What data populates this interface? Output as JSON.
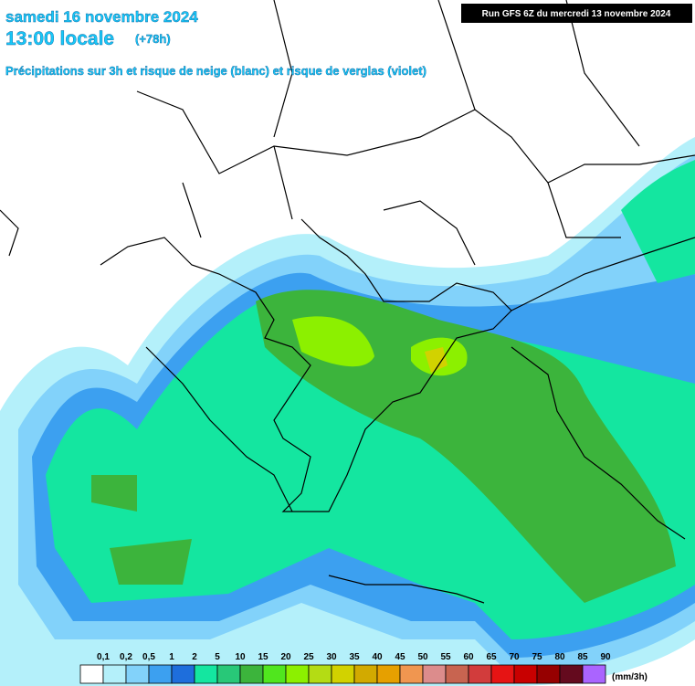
{
  "header": {
    "date": "samedi 16 novembre 2024",
    "time": "13:00 locale",
    "lead": "(+78h)",
    "subtitle": "Précipitations sur 3h et risque de neige (blanc) et risque de verglas (violet)",
    "run": "Run GFS 6Z du mercredi 13 novembre 2024"
  },
  "legend": {
    "labels": [
      "0,1",
      "0,2",
      "0,5",
      "1",
      "2",
      "5",
      "10",
      "15",
      "20",
      "25",
      "30",
      "35",
      "40",
      "45",
      "50",
      "55",
      "60",
      "65",
      "70",
      "75",
      "80",
      "85",
      "90"
    ],
    "colors": [
      "#ffffff",
      "#b4f0fa",
      "#82d2fa",
      "#3ca0f0",
      "#1e6edc",
      "#14e6a0",
      "#28c878",
      "#3cb43c",
      "#50e61e",
      "#8cf000",
      "#b4dc14",
      "#d2d200",
      "#d2aa00",
      "#e6a000",
      "#f09650",
      "#dc8c8c",
      "#c86450",
      "#d23c3c",
      "#e61414",
      "#c80000",
      "#960000",
      "#640a1e",
      "#aa64ff"
    ],
    "unit": "(mm/3h)"
  }
}
